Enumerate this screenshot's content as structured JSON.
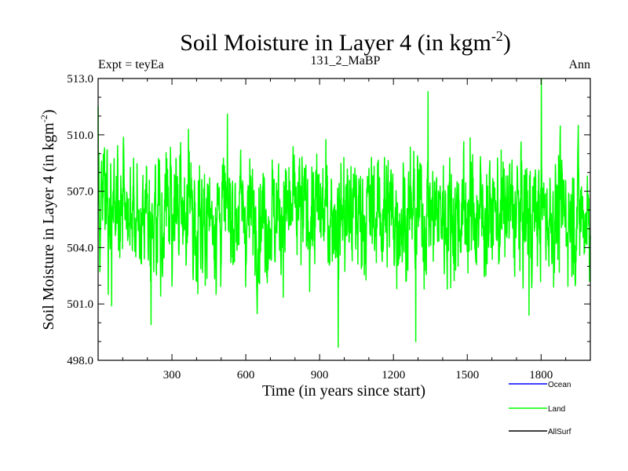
{
  "chart_data": {
    "type": "line",
    "title": "Soil Moisture in Layer 4 (in kgm",
    "title_superscript": "-2",
    "title_suffix": ")",
    "subtitle_left": "Expt = teyEa",
    "subtitle_center": "131_2_MaBP",
    "subtitle_right": "Ann",
    "xlabel": "Time (in years since start)",
    "ylabel": "Soil Moisture in Layer 4 (in kgm",
    "ylabel_superscript": "-2",
    "ylabel_suffix": ")",
    "xlim": [
      0,
      2000
    ],
    "ylim": [
      498.0,
      513.0
    ],
    "xticks": [
      300,
      600,
      900,
      1200,
      1500,
      1800
    ],
    "yticks": [
      498.0,
      501.0,
      504.0,
      507.0,
      510.0,
      513.0
    ],
    "ytick_labels": [
      "498.0",
      "501.0",
      "504.0",
      "507.0",
      "510.0",
      "513.0"
    ],
    "legend": [
      {
        "name": "Ocean",
        "color": "#0000ff"
      },
      {
        "name": "Land",
        "color": "#00ff00"
      },
      {
        "name": "AllSurf",
        "color": "#000000"
      }
    ],
    "legend_position": "bottom-right",
    "series": [
      {
        "name": "Land",
        "color": "#00ff00",
        "mean": 505.8,
        "std": 1.6,
        "n_points": 2000,
        "min": 498.7,
        "max": 513.0,
        "notable_points": [
          {
            "x": 0,
            "y": 511.5
          },
          {
            "x": 10,
            "y": 505.0
          },
          {
            "x": 55,
            "y": 500.9
          },
          {
            "x": 215,
            "y": 499.9
          },
          {
            "x": 975,
            "y": 498.7
          },
          {
            "x": 1290,
            "y": 499.0
          },
          {
            "x": 1340,
            "y": 512.3
          },
          {
            "x": 1800,
            "y": 513.0
          },
          {
            "x": 1750,
            "y": 500.4
          },
          {
            "x": 1950,
            "y": 510.5
          }
        ]
      }
    ]
  }
}
